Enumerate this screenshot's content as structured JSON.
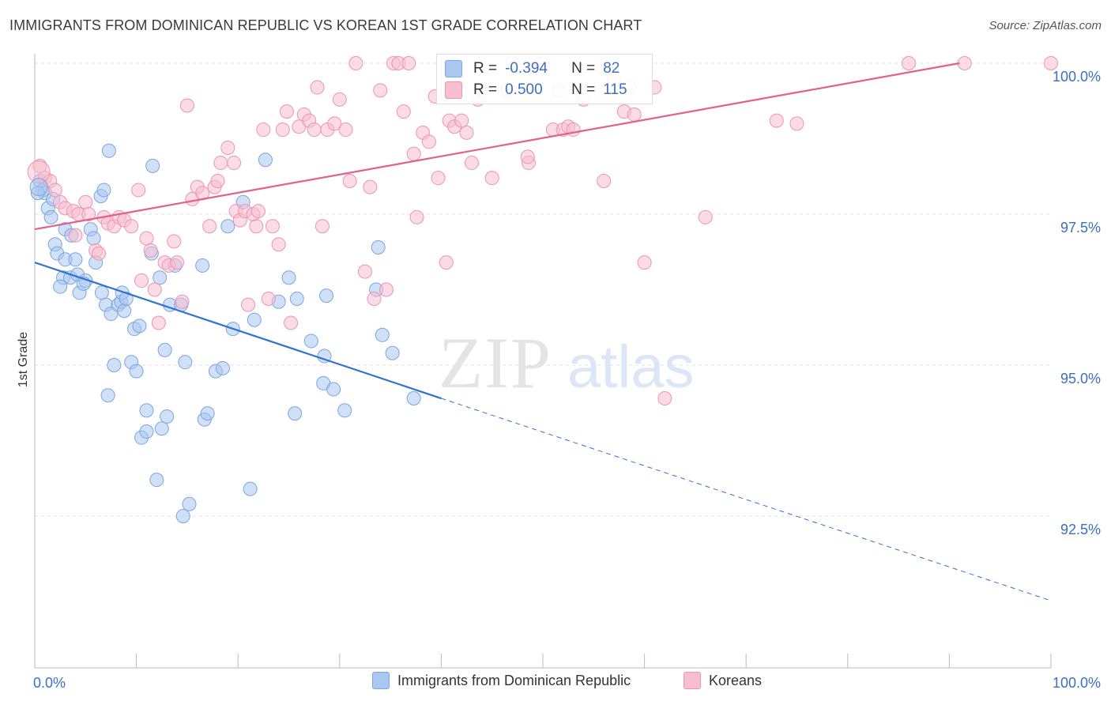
{
  "title": "IMMIGRANTS FROM DOMINICAN REPUBLIC VS KOREAN 1ST GRADE CORRELATION CHART",
  "source": "Source: ZipAtlas.com",
  "watermark": {
    "zip": "ZIP",
    "atlas": "atlas"
  },
  "stats": [
    {
      "r_label": "R = ",
      "r_value": "-0.394",
      "n_label": "N = ",
      "n_value": "82",
      "color": "#a9c7ef",
      "border": "#7aa6e0"
    },
    {
      "r_label": "R = ",
      "r_value": "0.500",
      "n_label": "N = ",
      "n_value": "115",
      "color": "#f7bdd0",
      "border": "#ee93b1"
    }
  ],
  "legend": [
    {
      "label": "Immigrants from Dominican Republic",
      "color": "#a9c7ef",
      "border": "#7aa6e0"
    },
    {
      "label": "Koreans",
      "color": "#f7bdd0",
      "border": "#ee93b1"
    }
  ],
  "chart_data": {
    "type": "scatter",
    "title": "IMMIGRANTS FROM DOMINICAN REPUBLIC VS KOREAN 1ST GRADE CORRELATION CHART",
    "xlabel": "",
    "ylabel": "1st Grade",
    "xlim": [
      0,
      100
    ],
    "ylim": [
      90.5,
      100.4
    ],
    "x_tick_labels": [
      "0.0%",
      "100.0%"
    ],
    "y_ticks": [
      92.5,
      95.0,
      97.5,
      100.0
    ],
    "y_tick_labels": [
      "92.5%",
      "95.0%",
      "97.5%",
      "100.0%"
    ],
    "grid": true,
    "series": [
      {
        "name": "Immigrants from Dominican Republic",
        "color": "#7aa6e0",
        "fill": "#a9c7ef",
        "line_color": "#2f72d0",
        "trend": {
          "x0": 0,
          "y0": 96.7,
          "x1": 40,
          "y1": 94.45,
          "dash_to_x": 100,
          "dash_to_y": 91.1
        },
        "points": [
          [
            0.5,
            98.05
          ],
          [
            0.8,
            97.9
          ],
          [
            1.0,
            97.85
          ],
          [
            1.3,
            97.6
          ],
          [
            1.6,
            97.45
          ],
          [
            2.0,
            97.0
          ],
          [
            2.2,
            96.85
          ],
          [
            2.8,
            96.45
          ],
          [
            3.0,
            96.75
          ],
          [
            3.5,
            96.45
          ],
          [
            3.0,
            97.25
          ],
          [
            3.6,
            97.15
          ],
          [
            4.0,
            96.75
          ],
          [
            4.2,
            96.5
          ],
          [
            4.4,
            96.2
          ],
          [
            5.0,
            96.4
          ],
          [
            5.5,
            97.25
          ],
          [
            5.8,
            97.1
          ],
          [
            6.0,
            96.7
          ],
          [
            6.5,
            97.8
          ],
          [
            6.8,
            97.9
          ],
          [
            7.3,
            98.55
          ],
          [
            7.2,
            94.5
          ],
          [
            7.8,
            95.0
          ],
          [
            6.6,
            96.2
          ],
          [
            7.0,
            96.0
          ],
          [
            7.5,
            95.85
          ],
          [
            8.2,
            96.0
          ],
          [
            8.5,
            96.05
          ],
          [
            8.8,
            95.9
          ],
          [
            8.6,
            96.2
          ],
          [
            9.0,
            96.1
          ],
          [
            9.5,
            95.05
          ],
          [
            9.8,
            95.6
          ],
          [
            10.0,
            94.9
          ],
          [
            10.3,
            95.65
          ],
          [
            10.5,
            93.8
          ],
          [
            11.0,
            94.25
          ],
          [
            11.0,
            93.9
          ],
          [
            11.5,
            96.85
          ],
          [
            11.6,
            98.3
          ],
          [
            12.0,
            93.1
          ],
          [
            12.3,
            96.45
          ],
          [
            12.5,
            93.95
          ],
          [
            12.8,
            95.25
          ],
          [
            13.0,
            94.15
          ],
          [
            13.3,
            96.0
          ],
          [
            13.8,
            96.65
          ],
          [
            14.4,
            96.0
          ],
          [
            14.8,
            95.05
          ],
          [
            15.2,
            92.7
          ],
          [
            14.6,
            92.5
          ],
          [
            16.5,
            96.65
          ],
          [
            16.7,
            94.1
          ],
          [
            17.0,
            94.2
          ],
          [
            17.8,
            94.9
          ],
          [
            18.5,
            94.95
          ],
          [
            19.0,
            97.3
          ],
          [
            19.5,
            95.6
          ],
          [
            20.5,
            97.7
          ],
          [
            21.2,
            92.95
          ],
          [
            21.6,
            95.75
          ],
          [
            22.7,
            98.4
          ],
          [
            24.0,
            96.05
          ],
          [
            25.0,
            96.45
          ],
          [
            25.6,
            94.2
          ],
          [
            25.8,
            96.1
          ],
          [
            27.2,
            95.4
          ],
          [
            28.4,
            94.7
          ],
          [
            28.7,
            96.15
          ],
          [
            28.5,
            95.15
          ],
          [
            29.4,
            94.6
          ],
          [
            30.5,
            94.25
          ],
          [
            34.2,
            95.5
          ],
          [
            35.2,
            95.2
          ],
          [
            37.3,
            94.45
          ],
          [
            33.6,
            96.25
          ],
          [
            33.8,
            96.95
          ],
          [
            0.3,
            97.85
          ],
          [
            1.8,
            97.75
          ],
          [
            2.5,
            96.3
          ],
          [
            4.8,
            96.35
          ]
        ]
      },
      {
        "name": "Koreans",
        "color": "#ee93b1",
        "fill": "#f7bdd0",
        "line_color": "#e2608c",
        "trend": {
          "x0": 0,
          "y0": 97.25,
          "x1": 91,
          "y1": 100.0
        },
        "points": [
          [
            0.5,
            98.3
          ],
          [
            1.0,
            98.1
          ],
          [
            1.5,
            98.05
          ],
          [
            2.0,
            97.9
          ],
          [
            2.5,
            97.7
          ],
          [
            3.0,
            97.6
          ],
          [
            3.8,
            97.55
          ],
          [
            4.3,
            97.5
          ],
          [
            5.0,
            97.7
          ],
          [
            5.3,
            97.5
          ],
          [
            6.0,
            96.9
          ],
          [
            6.3,
            96.85
          ],
          [
            6.8,
            97.45
          ],
          [
            7.2,
            97.35
          ],
          [
            7.8,
            97.3
          ],
          [
            8.3,
            97.45
          ],
          [
            8.8,
            97.4
          ],
          [
            9.5,
            97.3
          ],
          [
            10.2,
            97.9
          ],
          [
            10.5,
            96.4
          ],
          [
            11.0,
            97.1
          ],
          [
            11.4,
            96.9
          ],
          [
            11.8,
            96.25
          ],
          [
            12.2,
            95.7
          ],
          [
            12.8,
            96.7
          ],
          [
            13.2,
            96.65
          ],
          [
            13.7,
            97.05
          ],
          [
            14.0,
            96.7
          ],
          [
            14.5,
            96.05
          ],
          [
            15.0,
            99.3
          ],
          [
            15.5,
            97.75
          ],
          [
            16.0,
            97.95
          ],
          [
            16.5,
            97.85
          ],
          [
            17.2,
            97.3
          ],
          [
            17.7,
            97.95
          ],
          [
            18.0,
            98.05
          ],
          [
            18.3,
            98.35
          ],
          [
            19.0,
            98.6
          ],
          [
            19.6,
            98.35
          ],
          [
            19.8,
            97.55
          ],
          [
            20.2,
            97.4
          ],
          [
            20.7,
            97.55
          ],
          [
            21.0,
            96.0
          ],
          [
            21.5,
            97.5
          ],
          [
            21.8,
            97.3
          ],
          [
            22.5,
            98.9
          ],
          [
            23.0,
            96.1
          ],
          [
            23.4,
            97.3
          ],
          [
            24.0,
            97.0
          ],
          [
            24.4,
            98.9
          ],
          [
            24.8,
            99.2
          ],
          [
            25.2,
            95.7
          ],
          [
            26.0,
            98.95
          ],
          [
            26.5,
            99.15
          ],
          [
            27.0,
            99.05
          ],
          [
            27.5,
            98.9
          ],
          [
            27.8,
            99.6
          ],
          [
            28.3,
            97.3
          ],
          [
            28.8,
            98.9
          ],
          [
            29.5,
            99.0
          ],
          [
            30.0,
            99.4
          ],
          [
            30.6,
            98.9
          ],
          [
            31.0,
            98.05
          ],
          [
            31.6,
            100.0
          ],
          [
            32.5,
            96.55
          ],
          [
            33.0,
            97.95
          ],
          [
            33.4,
            96.1
          ],
          [
            34.0,
            99.55
          ],
          [
            34.6,
            96.25
          ],
          [
            35.3,
            100.0
          ],
          [
            35.8,
            100.0
          ],
          [
            36.3,
            99.2
          ],
          [
            36.8,
            100.0
          ],
          [
            37.3,
            98.5
          ],
          [
            37.6,
            97.45
          ],
          [
            38.2,
            98.85
          ],
          [
            38.8,
            98.7
          ],
          [
            39.4,
            99.45
          ],
          [
            39.7,
            98.1
          ],
          [
            40.5,
            96.7
          ],
          [
            40.8,
            99.05
          ],
          [
            41.3,
            98.95
          ],
          [
            42.0,
            99.05
          ],
          [
            42.5,
            98.85
          ],
          [
            43.0,
            98.35
          ],
          [
            43.6,
            99.4
          ],
          [
            44.0,
            99.55
          ],
          [
            45.0,
            98.1
          ],
          [
            46.5,
            99.55
          ],
          [
            47.0,
            100.0
          ],
          [
            48.6,
            98.35
          ],
          [
            48.5,
            98.45
          ],
          [
            50.0,
            100.0
          ],
          [
            51.0,
            98.9
          ],
          [
            51.5,
            99.55
          ],
          [
            52.0,
            98.9
          ],
          [
            52.5,
            98.95
          ],
          [
            53.0,
            98.9
          ],
          [
            54.0,
            99.4
          ],
          [
            56.0,
            98.05
          ],
          [
            57.0,
            99.75
          ],
          [
            58.0,
            99.2
          ],
          [
            58.5,
            99.6
          ],
          [
            59.0,
            99.15
          ],
          [
            60.0,
            96.7
          ],
          [
            61.0,
            99.6
          ],
          [
            62.0,
            94.45
          ],
          [
            66.0,
            97.45
          ],
          [
            73.0,
            99.05
          ],
          [
            75.0,
            99.0
          ],
          [
            86.0,
            100.0
          ],
          [
            91.5,
            100.0
          ],
          [
            100.0,
            100.0
          ],
          [
            4.0,
            97.15
          ],
          [
            22.0,
            97.55
          ]
        ]
      }
    ]
  }
}
